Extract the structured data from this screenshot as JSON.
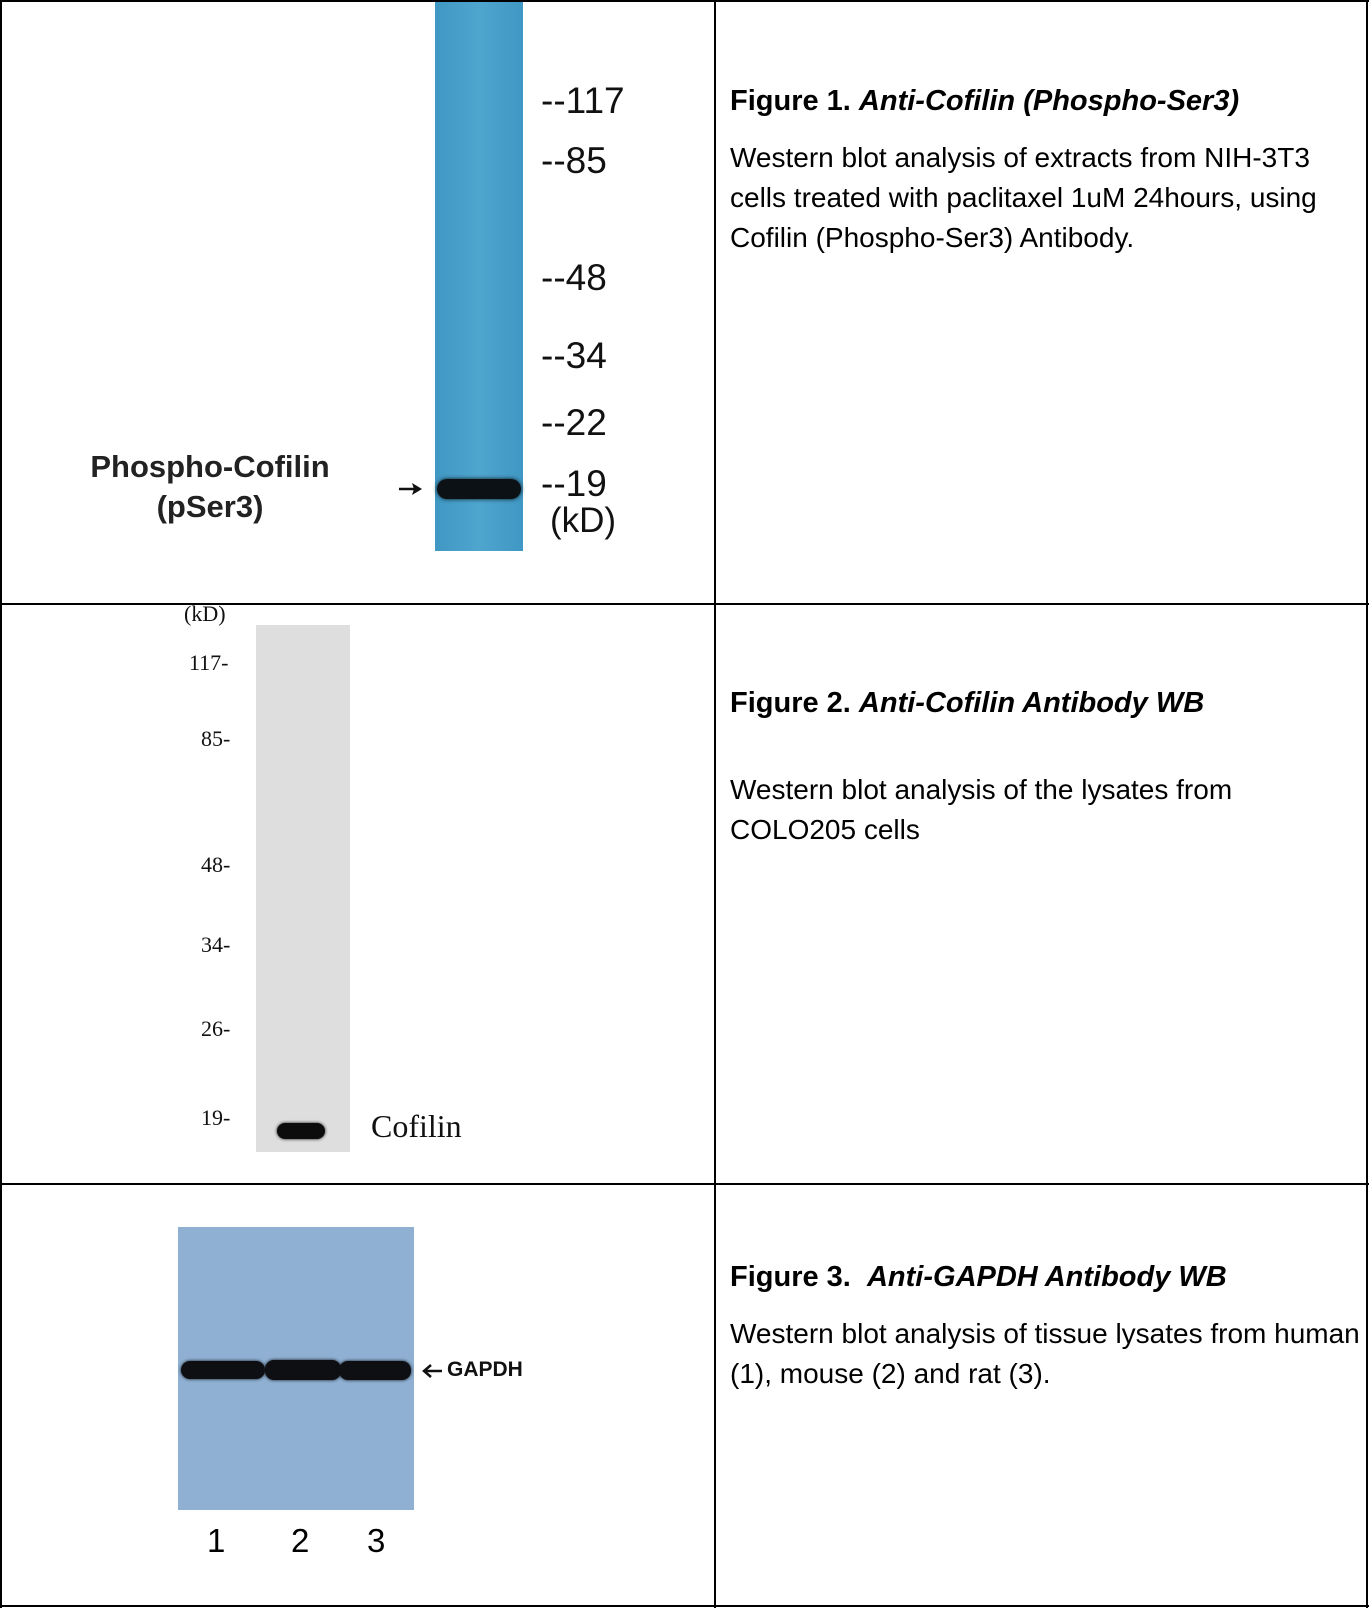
{
  "figures": [
    {
      "number": "Figure 1.",
      "title": "Anti-Cofilin (Phospho-Ser3)",
      "caption": "Western blot analysis of extracts from NIH-3T3 cells treated with paclitaxel 1uM 24hours, using Cofilin (Phospho-Ser3) Antibody.",
      "blot": {
        "band_label_line1": "Phospho-Cofilin",
        "band_label_line2": "(pSer3)",
        "markers": [
          "--117",
          "--85",
          "--48",
          "--34",
          "--22",
          "--19"
        ],
        "unit": "(kD)",
        "lane_color": "#4aa0c8"
      }
    },
    {
      "number": "Figure 2.",
      "title": "Anti-Cofilin Antibody WB",
      "caption": "Western blot analysis of the lysates from COLO205 cells",
      "blot": {
        "unit": "(kD)",
        "markers": [
          "117-",
          "85-",
          "48-",
          "34-",
          "26-",
          "19-"
        ],
        "band_label": "Cofilin",
        "lane_color": "#dedede"
      }
    },
    {
      "number": "Figure 3.",
      "title": "Anti-GAPDH Antibody WB",
      "caption": "Western blot analysis of tissue lysates from human (1), mouse (2) and rat (3).",
      "blot": {
        "band_label": "GAPDH",
        "lanes": [
          "1",
          "2",
          "3"
        ],
        "membrane_color": "#8fb0d3"
      }
    }
  ]
}
